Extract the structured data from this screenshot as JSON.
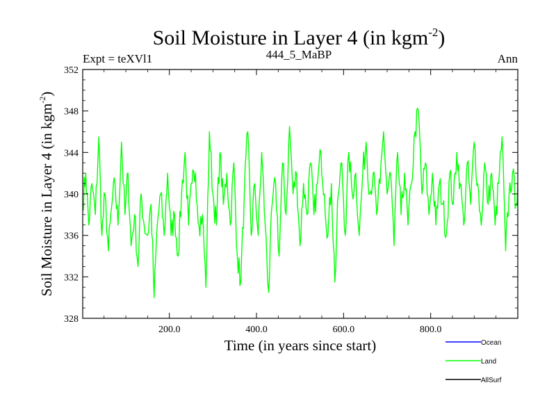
{
  "chart_data": {
    "type": "line",
    "title": "Soil Moisture in Layer 4 (in kgm",
    "title_sup": "-2",
    "title_close": ")",
    "subtitle_left": "Expt = teXVl1",
    "subtitle_center": "444_5_MaBP",
    "subtitle_right": "Ann",
    "xlabel": "Time (in years since start)",
    "ylabel": "Soil Moisture in Layer 4 (in kgm",
    "ylabel_sup": "-2",
    "ylabel_close": ")",
    "xlim": [
      1,
      1000
    ],
    "ylim": [
      328,
      352
    ],
    "xticks": [
      200,
      400,
      600,
      800
    ],
    "xtick_labels": [
      "200.0",
      "400.0",
      "600.0",
      "800.0"
    ],
    "yticks": [
      328,
      332,
      336,
      340,
      344,
      348,
      352
    ],
    "ytick_labels": [
      "328",
      "332",
      "336",
      "340",
      "344",
      "348",
      "352"
    ],
    "series": [
      {
        "name": "Ocean",
        "color": "#0000ff",
        "values": []
      },
      {
        "name": "Land",
        "color": "#00ff00",
        "anchors": [
          [
            1,
            339
          ],
          [
            8,
            342
          ],
          [
            15,
            337
          ],
          [
            22,
            341
          ],
          [
            30,
            338
          ],
          [
            38,
            345.5
          ],
          [
            45,
            336
          ],
          [
            52,
            340
          ],
          [
            60,
            334.5
          ],
          [
            68,
            339
          ],
          [
            75,
            341
          ],
          [
            82,
            337
          ],
          [
            90,
            345
          ],
          [
            98,
            338
          ],
          [
            105,
            342
          ],
          [
            112,
            335
          ],
          [
            120,
            338
          ],
          [
            128,
            333
          ],
          [
            135,
            340
          ],
          [
            142,
            337
          ],
          [
            150,
            336
          ],
          [
            158,
            339
          ],
          [
            165,
            330
          ],
          [
            172,
            337
          ],
          [
            180,
            340
          ],
          [
            188,
            336
          ],
          [
            196,
            342
          ],
          [
            204,
            336
          ],
          [
            212,
            338
          ],
          [
            220,
            334
          ],
          [
            228,
            340
          ],
          [
            236,
            344
          ],
          [
            244,
            337
          ],
          [
            252,
            341
          ],
          [
            260,
            342
          ],
          [
            268,
            337
          ],
          [
            276,
            338
          ],
          [
            284,
            331
          ],
          [
            292,
            346
          ],
          [
            300,
            340
          ],
          [
            308,
            337
          ],
          [
            316,
            344
          ],
          [
            324,
            339
          ],
          [
            332,
            342
          ],
          [
            340,
            337
          ],
          [
            348,
            343
          ],
          [
            356,
            334
          ],
          [
            364,
            331.5
          ],
          [
            372,
            340
          ],
          [
            380,
            346
          ],
          [
            388,
            336
          ],
          [
            396,
            341
          ],
          [
            404,
            336
          ],
          [
            412,
            344
          ],
          [
            420,
            337
          ],
          [
            428,
            330.5
          ],
          [
            436,
            339
          ],
          [
            444,
            341
          ],
          [
            452,
            334
          ],
          [
            460,
            343
          ],
          [
            468,
            338
          ],
          [
            476,
            346.5
          ],
          [
            484,
            340
          ],
          [
            492,
            342
          ],
          [
            500,
            335
          ],
          [
            508,
            341
          ],
          [
            516,
            338
          ],
          [
            524,
            343
          ],
          [
            532,
            338
          ],
          [
            540,
            341
          ],
          [
            548,
            344
          ],
          [
            556,
            340
          ],
          [
            564,
            336
          ],
          [
            572,
            341
          ],
          [
            580,
            331.5
          ],
          [
            588,
            340
          ],
          [
            596,
            343
          ],
          [
            604,
            336
          ],
          [
            612,
            344
          ],
          [
            620,
            340
          ],
          [
            628,
            342
          ],
          [
            636,
            336
          ],
          [
            644,
            342
          ],
          [
            652,
            345
          ],
          [
            660,
            340
          ],
          [
            668,
            342
          ],
          [
            676,
            338
          ],
          [
            684,
            341
          ],
          [
            692,
            346
          ],
          [
            700,
            340
          ],
          [
            708,
            342
          ],
          [
            716,
            335
          ],
          [
            724,
            344
          ],
          [
            732,
            338
          ],
          [
            740,
            342
          ],
          [
            748,
            337
          ],
          [
            756,
            341
          ],
          [
            764,
            346
          ],
          [
            772,
            348
          ],
          [
            780,
            340
          ],
          [
            788,
            343
          ],
          [
            796,
            338
          ],
          [
            804,
            342
          ],
          [
            812,
            337
          ],
          [
            820,
            341
          ],
          [
            828,
            339
          ],
          [
            836,
            336
          ],
          [
            844,
            342
          ],
          [
            852,
            339
          ],
          [
            860,
            344
          ],
          [
            868,
            341
          ],
          [
            876,
            337
          ],
          [
            884,
            343
          ],
          [
            892,
            339
          ],
          [
            900,
            345
          ],
          [
            908,
            341
          ],
          [
            916,
            337
          ],
          [
            924,
            343
          ],
          [
            932,
            339
          ],
          [
            940,
            342
          ],
          [
            948,
            337
          ],
          [
            956,
            341
          ],
          [
            964,
            345.5
          ],
          [
            972,
            334.5
          ],
          [
            980,
            340
          ],
          [
            988,
            342
          ],
          [
            996,
            339
          ],
          [
            1000,
            341
          ]
        ]
      },
      {
        "name": "AllSurf",
        "color": "#000000",
        "values": []
      }
    ],
    "legend_position": "bottom-right"
  }
}
